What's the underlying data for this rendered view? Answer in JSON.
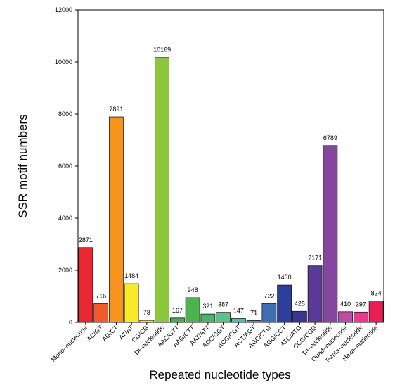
{
  "chart_data": {
    "type": "bar",
    "xlabel": "Repeated nucleotide types",
    "ylabel": "SSR motif numbers",
    "ylim": [
      0,
      12000
    ],
    "yticks": [
      0,
      2000,
      4000,
      6000,
      8000,
      10000,
      12000
    ],
    "grid": false,
    "categories": [
      "Mono–nucleotide",
      "AC/GT",
      "AG/CT",
      "AT/AT",
      "CG/CG",
      "Di–nucleotide",
      "AAC/GTT",
      "AAG/CTT",
      "AAT/ATT",
      "ACC/GGT",
      "ACG/CGT",
      "ACT/AGT",
      "AGC/CTG",
      "AGG/CCT",
      "ATC/ATG",
      "CCG/CGG",
      "Tri–nucleotide",
      "Quad–nucleotide",
      "Penta–nucleotide",
      "Hexa–nucleotide"
    ],
    "values": [
      2871,
      716,
      7891,
      1484,
      78,
      10169,
      167,
      948,
      321,
      387,
      147,
      71,
      722,
      1430,
      425,
      2171,
      6789,
      410,
      397,
      824
    ],
    "colors": [
      "#e8282e",
      "#ee5a2a",
      "#f7941d",
      "#fae92b",
      "#f2e03a",
      "#8cc63f",
      "#49ae49",
      "#4cb34e",
      "#4cb26c",
      "#5dc08e",
      "#4dbdb0",
      "#2aa5c4",
      "#3e6fb5",
      "#2d3e9c",
      "#3a3593",
      "#5a3998",
      "#8446a0",
      "#bb4fa0",
      "#e53a8f",
      "#e81e54"
    ]
  }
}
